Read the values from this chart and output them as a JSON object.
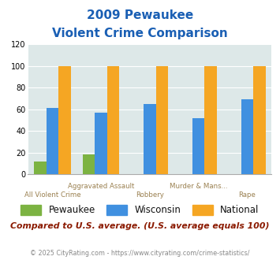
{
  "title_line1": "2009 Pewaukee",
  "title_line2": "Violent Crime Comparison",
  "categories": [
    "All Violent Crime",
    "Aggravated Assault",
    "Robbery",
    "Murder & Mans...",
    "Rape"
  ],
  "pewaukee": [
    12,
    18,
    0,
    0,
    0
  ],
  "wisconsin": [
    61,
    57,
    65,
    52,
    69
  ],
  "national": [
    100,
    100,
    100,
    100,
    100
  ],
  "pewaukee_color": "#7cb342",
  "wisconsin_color": "#4090e0",
  "national_color": "#f5a623",
  "ylim": [
    0,
    120
  ],
  "yticks": [
    0,
    20,
    40,
    60,
    80,
    100,
    120
  ],
  "bar_width": 0.25,
  "background_color": "#dde8e8",
  "title_color": "#1a5fb4",
  "note": "Compared to U.S. average. (U.S. average equals 100)",
  "footer": "© 2025 CityRating.com - https://www.cityrating.com/crime-statistics/",
  "note_color": "#8b1a00",
  "footer_color": "#888888",
  "xlabel_color": "#9a8050"
}
